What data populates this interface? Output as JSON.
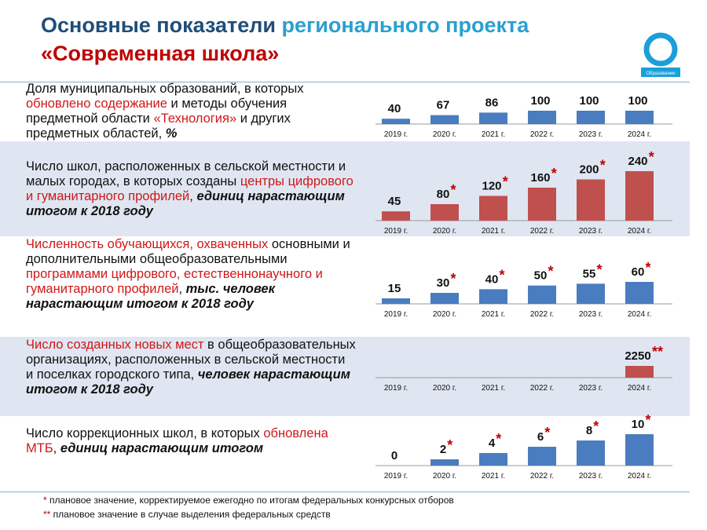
{
  "header": {
    "title_part1": "Основные показатели ",
    "title_part2": "регионального проекта",
    "title_part3": "«Современная школа»"
  },
  "logo": {
    "label": "Образование",
    "color": "#1a9fd9"
  },
  "colors": {
    "blue_bar": "#4a7cc0",
    "red_bar": "#c0504d",
    "highlight": "#d01818",
    "star": "#c00000",
    "band": "#dfe6f1"
  },
  "indicators": [
    {
      "desc_a": "Доля муниципальных образований, в которых ",
      "desc_hl1": "обновлено содержание",
      "desc_b": " и методы обучения предметной области ",
      "desc_hl2": "«Технология»",
      "desc_c": " и других предметных областей, ",
      "desc_em": "%"
    },
    {
      "desc_a": "Число школ, расположенных в сельской местности и малых городах, в которых созданы ",
      "desc_hl1": "центры цифрового и гуманитарного профилей",
      "desc_b": ", ",
      "desc_em": "единиц нарастающим итогом к 2018 году"
    },
    {
      "desc_hl1": "Численность обучающихся, охваченных",
      "desc_a": " основными и дополнительными общеобразовательными ",
      "desc_hl2": "программами цифрового, естественнонаучного и гуманитарного профилей",
      "desc_b": ", ",
      "desc_em": "тыс. человек нарастающим итогом к 2018 году"
    },
    {
      "desc_hl1": "Число созданных новых мест",
      "desc_a": " в общеобразовательных организациях, расположенных в сельской местности и поселках городского типа, ",
      "desc_em": "человек нарастающим итогом к 2018 году"
    },
    {
      "desc_a": "Число коррекционных школ, в которых ",
      "desc_hl1": "обновлена МТБ",
      "desc_b": ", ",
      "desc_em": "единиц нарастающим итогом"
    }
  ],
  "chart_data": [
    {
      "type": "bar",
      "categories": [
        "2019 г.",
        "2020 г.",
        "2021 г.",
        "2022 г.",
        "2023 г.",
        "2024 г."
      ],
      "values": [
        40,
        67,
        86,
        100,
        100,
        100
      ],
      "value_labels": [
        "40",
        "67",
        "86",
        "100",
        "100",
        "100"
      ],
      "marks": [
        "",
        "",
        "",
        "",
        "",
        ""
      ],
      "color": "#4a7cc0",
      "ylim": [
        0,
        100
      ]
    },
    {
      "type": "bar",
      "categories": [
        "2019 г.",
        "2020 г.",
        "2021 г.",
        "2022 г.",
        "2023 г.",
        "2024 г."
      ],
      "values": [
        45,
        80,
        120,
        160,
        200,
        240
      ],
      "value_labels": [
        "45",
        "80",
        "120",
        "160",
        "200",
        "240"
      ],
      "marks": [
        "",
        "*",
        "*",
        "*",
        "*",
        "*"
      ],
      "color": "#c0504d",
      "ylim": [
        0,
        240
      ]
    },
    {
      "type": "bar",
      "categories": [
        "2019 г.",
        "2020 г.",
        "2021 г.",
        "2022 г.",
        "2023 г.",
        "2024 г."
      ],
      "values": [
        15,
        30,
        40,
        50,
        55,
        60
      ],
      "value_labels": [
        "15",
        "30",
        "40",
        "50",
        "55",
        "60"
      ],
      "marks": [
        "",
        "*",
        "*",
        "*",
        "*",
        "*"
      ],
      "color": "#4a7cc0",
      "ylim": [
        0,
        60
      ]
    },
    {
      "type": "bar",
      "categories": [
        "2019 г.",
        "2020 г.",
        "2021 г.",
        "2022 г.",
        "2023 г.",
        "2024 г."
      ],
      "values": [
        null,
        null,
        null,
        null,
        null,
        2250
      ],
      "value_labels": [
        "",
        "",
        "",
        "",
        "",
        "2250"
      ],
      "marks": [
        "",
        "",
        "",
        "",
        "",
        "**"
      ],
      "color": "#c0504d",
      "ylim": [
        0,
        2250
      ]
    },
    {
      "type": "bar",
      "categories": [
        "2019 г.",
        "2020 г.",
        "2021 г.",
        "2022 г.",
        "2023 г.",
        "2024 г."
      ],
      "values": [
        0,
        2,
        4,
        6,
        8,
        10
      ],
      "value_labels": [
        "0",
        "2",
        "4",
        "6",
        "8",
        "10"
      ],
      "marks": [
        "",
        "*",
        "*",
        "*",
        "*",
        "*"
      ],
      "color": "#4a7cc0",
      "ylim": [
        0,
        10
      ]
    }
  ],
  "footnotes": [
    {
      "mark": "*",
      "text": " плановое значение, корректируемое ежегодно по итогам федеральных конкурсных отборов"
    },
    {
      "mark": "**",
      "text": " плановое значение в случае выделения федеральных средств"
    }
  ]
}
